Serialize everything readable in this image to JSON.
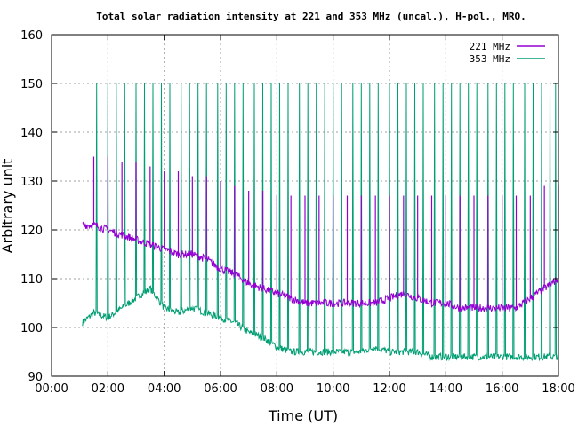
{
  "chart_data": {
    "type": "line",
    "title": "Total solar radiation intensity at 221 and 353 MHz (uncal.), H-pol., MRO.",
    "xlabel": "Time (UT)",
    "ylabel": "Arbitrary unit",
    "xlim": [
      0,
      18
    ],
    "ylim": [
      90,
      160
    ],
    "x_unit": "hours UT",
    "x_ticks": [
      0,
      2,
      4,
      6,
      8,
      10,
      12,
      14,
      16,
      18
    ],
    "x_tick_labels": [
      "00:00",
      "02:00",
      "04:00",
      "06:00",
      "08:00",
      "10:00",
      "12:00",
      "14:00",
      "16:00",
      "18:00"
    ],
    "y_ticks": [
      90,
      100,
      110,
      120,
      130,
      140,
      150,
      160
    ],
    "y_tick_labels": [
      "90",
      "100",
      "110",
      "120",
      "130",
      "140",
      "150",
      "160"
    ],
    "grid": true,
    "legend_position": "top-right",
    "series": [
      {
        "name": "221 MHz",
        "color": "#9400d3",
        "baseline": {
          "x": [
            1.1,
            1.5,
            2.0,
            2.5,
            3.0,
            3.5,
            4.0,
            4.5,
            5.0,
            5.5,
            6.0,
            6.5,
            7.0,
            7.5,
            8.0,
            8.5,
            9.0,
            9.5,
            10.0,
            10.5,
            11.0,
            11.5,
            12.0,
            12.5,
            13.0,
            13.5,
            14.0,
            14.5,
            15.0,
            15.5,
            16.0,
            16.5,
            17.0,
            17.5,
            18.0
          ],
          "y": [
            121,
            121,
            120,
            119,
            118,
            117,
            116,
            115,
            115,
            114,
            112,
            111,
            109,
            108,
            107,
            106,
            105,
            105,
            105,
            105,
            105,
            105,
            106,
            107,
            106,
            105,
            105,
            104,
            104,
            104,
            104,
            104,
            106,
            108,
            110
          ]
        },
        "spike_peak": {
          "x": [
            1.5,
            2.0,
            2.5,
            3.0,
            3.5,
            4.0,
            4.5,
            5.0,
            5.5,
            6.0,
            6.5,
            7.0,
            7.5,
            8.0,
            8.5,
            9.0,
            9.5,
            10.0,
            10.5,
            11.0,
            11.5,
            12.0,
            12.5,
            13.0,
            13.5,
            14.0,
            14.5,
            15.0,
            15.5,
            16.0,
            16.5,
            17.0,
            17.5,
            18.0
          ],
          "y": [
            135,
            135,
            134,
            134,
            133,
            132,
            132,
            131,
            131,
            130,
            129,
            128,
            128,
            127,
            127,
            127,
            127,
            127,
            127,
            127,
            127,
            127,
            127,
            127,
            127,
            127,
            127,
            127,
            127,
            127,
            127,
            127,
            129,
            129
          ]
        }
      },
      {
        "name": "353 MHz",
        "color": "#009e73",
        "baseline": {
          "x": [
            1.1,
            1.5,
            2.0,
            2.5,
            3.0,
            3.5,
            4.0,
            4.5,
            5.0,
            5.5,
            6.0,
            6.5,
            7.0,
            7.5,
            8.0,
            8.5,
            9.0,
            9.5,
            10.0,
            10.5,
            11.0,
            11.5,
            12.0,
            12.5,
            13.0,
            13.5,
            14.0,
            14.5,
            15.0,
            15.5,
            16.0,
            16.5,
            17.0,
            17.5,
            18.0
          ],
          "y": [
            101,
            103,
            102,
            104,
            106,
            108,
            104,
            103,
            104,
            103,
            102,
            101,
            99,
            98,
            96,
            95,
            95,
            95,
            95,
            95,
            95,
            96,
            95,
            95,
            95,
            94,
            94,
            94,
            94,
            94,
            94,
            94,
            94,
            94,
            94
          ]
        },
        "spike_peak": 150,
        "spike_times": [
          1.6,
          2.0,
          2.3,
          2.6,
          3.0,
          3.3,
          3.6,
          3.9,
          4.2,
          4.6,
          4.9,
          5.2,
          5.5,
          5.9,
          6.2,
          6.5,
          6.8,
          7.2,
          7.5,
          7.8,
          8.1,
          8.4,
          8.8,
          9.1,
          9.4,
          9.7,
          10.0,
          10.3,
          10.7,
          11.0,
          11.3,
          11.6,
          12.0,
          12.3,
          12.6,
          12.9,
          13.2,
          13.6,
          13.9,
          14.2,
          14.5,
          14.8,
          15.1,
          15.5,
          15.8,
          16.1,
          16.4,
          16.8,
          17.1,
          17.4,
          17.7,
          17.9
        ]
      }
    ]
  }
}
